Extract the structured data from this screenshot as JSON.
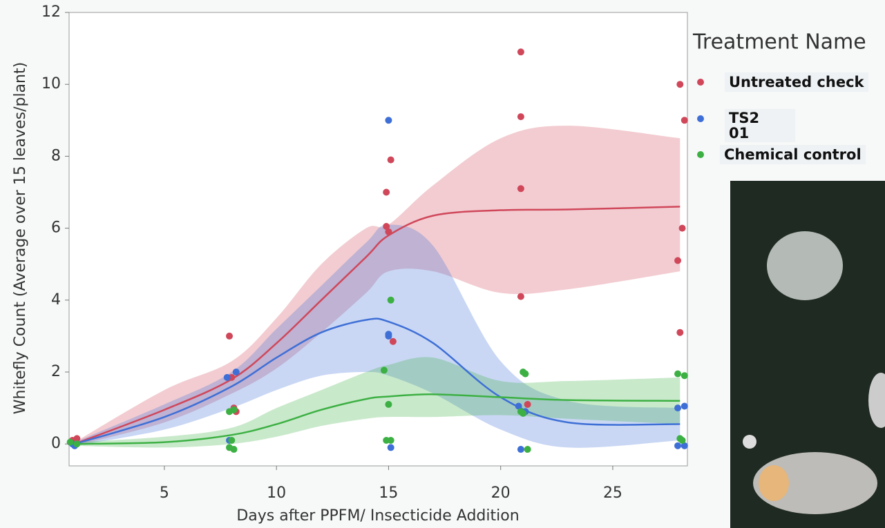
{
  "chart_data": {
    "type": "scatter",
    "x_label": "Days after PPFM/ Insecticide Addition",
    "y_label": "Whitefly Count (Average over 15 leaves/plant)",
    "legend_title": "Treatment Name",
    "xlim": [
      0.75,
      28.33
    ],
    "xticks": [
      5,
      10,
      15,
      20,
      25
    ],
    "ylim": [
      -0.61,
      12
    ],
    "yticks": [
      0,
      2,
      4,
      6,
      8,
      10,
      12
    ],
    "fit_x": [
      1,
      5,
      8,
      10,
      12,
      14,
      15,
      17,
      20,
      23,
      28
    ],
    "series": [
      {
        "name": "Untreated check",
        "color": "#d0475a",
        "x": [
          0.9,
          1.1,
          7.9,
          8.0,
          8.1,
          8.2,
          14.9,
          15.1,
          14.9,
          15.0,
          15.2,
          20.9,
          20.9,
          20.9,
          20.9,
          21.2,
          28.0,
          28.2,
          28.1,
          27.9,
          28.0
        ],
        "values": [
          0.1,
          0.15,
          3.0,
          1.85,
          1.0,
          0.9,
          7.0,
          7.9,
          6.05,
          5.9,
          2.85,
          10.9,
          9.1,
          7.1,
          4.1,
          1.1,
          10.0,
          9.0,
          6.0,
          5.1,
          3.1
        ],
        "fit": [
          0,
          0.95,
          1.8,
          2.8,
          4.0,
          5.2,
          5.8,
          6.35,
          6.5,
          6.52,
          6.6
        ],
        "fit_lower": [
          -0.05,
          0.6,
          1.4,
          2.1,
          3.1,
          4.2,
          4.8,
          4.8,
          4.2,
          4.3,
          4.8
        ],
        "fit_upper": [
          0.05,
          1.5,
          2.3,
          3.5,
          5.0,
          6.0,
          6.1,
          7.2,
          8.5,
          8.85,
          8.5
        ]
      },
      {
        "name": "TS201",
        "color": "#3e6fd6",
        "x": [
          0.9,
          1.0,
          7.8,
          8.2,
          7.9,
          15.0,
          15.0,
          15.0,
          15.1,
          20.8,
          21.1,
          20.9,
          27.9,
          28.2,
          27.9,
          28.2
        ],
        "values": [
          0,
          -0.05,
          1.85,
          2.0,
          0.1,
          9.0,
          3.05,
          3.0,
          -0.1,
          1.05,
          0.9,
          -0.15,
          1.0,
          1.05,
          -0.05,
          -0.05
        ],
        "fit": [
          0,
          0.75,
          1.6,
          2.4,
          3.1,
          3.45,
          3.4,
          2.8,
          1.3,
          0.6,
          0.55
        ],
        "fit_lower": [
          -0.05,
          0.4,
          1.0,
          1.5,
          1.9,
          2.0,
          1.9,
          1.4,
          0.4,
          -0.1,
          0.1
        ],
        "fit_upper": [
          0.05,
          1.1,
          2.0,
          3.2,
          4.4,
          5.6,
          6.1,
          5.5,
          2.3,
          1.2,
          1.0
        ]
      },
      {
        "name": "Chemical control",
        "color": "#3cb043",
        "x": [
          0.8,
          1.1,
          7.9,
          8.1,
          8.0,
          7.9,
          8.1,
          15.1,
          14.8,
          15.0,
          14.9,
          15.1,
          21.0,
          21.1,
          20.9,
          21.0,
          21.2,
          27.9,
          28.2,
          28.0,
          28.1
        ],
        "values": [
          0.05,
          0,
          0.9,
          0.95,
          0.1,
          -0.1,
          -0.15,
          4.0,
          2.05,
          1.1,
          0.1,
          0.1,
          2.0,
          1.95,
          0.9,
          0.85,
          -0.15,
          1.95,
          1.9,
          0.15,
          0.1
        ],
        "fit": [
          0,
          0.05,
          0.25,
          0.55,
          0.95,
          1.25,
          1.32,
          1.38,
          1.3,
          1.22,
          1.2
        ],
        "fit_lower": [
          -0.05,
          -0.1,
          0,
          0.2,
          0.5,
          0.7,
          0.75,
          0.75,
          0.8,
          0.7,
          0.55
        ],
        "fit_upper": [
          0.05,
          0.2,
          0.45,
          1.0,
          1.5,
          2.0,
          2.2,
          2.4,
          1.75,
          1.75,
          1.85
        ]
      }
    ]
  }
}
